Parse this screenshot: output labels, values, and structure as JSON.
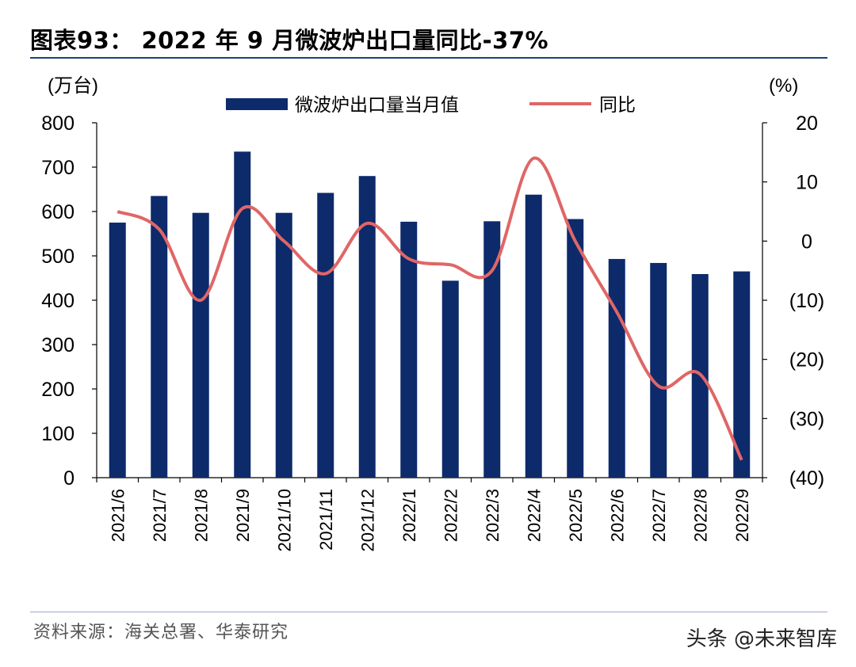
{
  "title": "图表93： 2022 年 9 月微波炉出口量同比-37%",
  "source": "资料来源：海关总署、华泰研究",
  "watermark": "头条 @未来智库",
  "colors": {
    "bar": "#0d2a6b",
    "line": "#e06666",
    "rule": "#1f3f7a"
  },
  "chart_data": {
    "type": "bar+line",
    "left_unit": "(万台)",
    "right_unit": "(%)",
    "categories": [
      "2021/6",
      "2021/7",
      "2021/8",
      "2021/9",
      "2021/10",
      "2021/11",
      "2021/12",
      "2022/1",
      "2022/2",
      "2022/3",
      "2022/4",
      "2022/5",
      "2022/6",
      "2022/7",
      "2022/8",
      "2022/9"
    ],
    "series": [
      {
        "name": "微波炉出口量当月值",
        "type": "bar",
        "axis": "left",
        "values": [
          575,
          635,
          597,
          735,
          597,
          642,
          680,
          577,
          444,
          578,
          638,
          583,
          493,
          484,
          459,
          465
        ]
      },
      {
        "name": "同比",
        "type": "line",
        "axis": "right",
        "values": [
          5,
          2,
          -10,
          5.5,
          0,
          -5.5,
          3,
          -3,
          -4,
          -5,
          14,
          0,
          -12,
          -24.5,
          -22.5,
          -37
        ]
      }
    ],
    "left_axis": {
      "min": 0,
      "max": 800,
      "ticks": [
        "800",
        "700",
        "600",
        "500",
        "400",
        "300",
        "200",
        "100",
        "0"
      ]
    },
    "right_axis": {
      "min": -40,
      "max": 20,
      "ticks": [
        "20",
        "10",
        "0",
        "(10)",
        "(20)",
        "(30)",
        "(40)"
      ]
    }
  }
}
